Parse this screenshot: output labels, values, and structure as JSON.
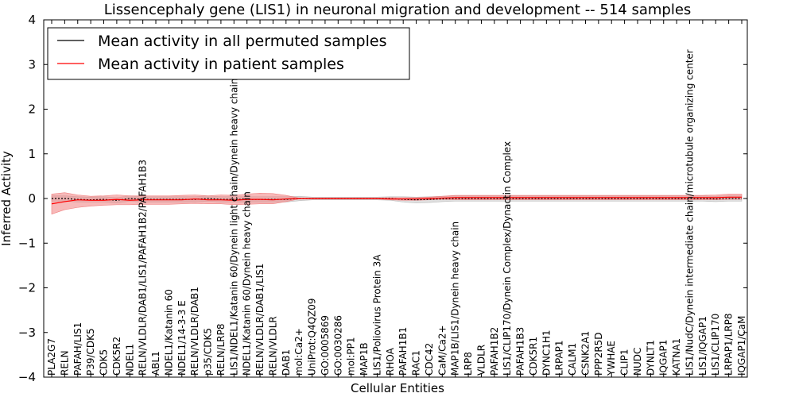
{
  "chart_data": {
    "type": "line",
    "title": "Lissencephaly gene (LIS1) in neuronal migration and development -- 514 samples",
    "xlabel": "Cellular Entities",
    "ylabel": "Inferred Activity",
    "ylim": [
      -4,
      4
    ],
    "yticks": [
      -4,
      -3,
      -2,
      -1,
      0,
      1,
      2,
      3,
      4
    ],
    "ytick_labels": [
      "−4",
      "−3",
      "−2",
      "−1",
      "0",
      "1",
      "2",
      "3",
      "4"
    ],
    "grid": false,
    "legend_position": "top-left",
    "categories": [
      "PLA2G7",
      "RELN",
      "PAFAH/LIS1",
      "P39/CDK5",
      "CDK5",
      "CDK5R2",
      "NDEL1",
      "RELN/VLDLR/DAB1/LIS1/PAFAH1B2/PAFAH1B3",
      "ABL1",
      "NDEL1/Katanin 60",
      "NDEL1/14-3-3 E",
      "RELN/VLDLR/DAB1",
      "p35/CDK5",
      "RELN/LRP8",
      "LIS1/NDEL1/Katanin 60/Dynein light chain/Dynein heavy chain",
      "NDEL1/Katanin 60/Dynein heavy chain",
      "RELN/VLDLR/DAB1/LIS1",
      "RELN/VLDLR",
      "DAB1",
      "mol:Ca2+",
      "UniProt:Q4QZ09",
      "GO:0005869",
      "GO:0030286",
      "mol:PP1",
      "MAP1B",
      "LIS1/Poliovirus Protein 3A",
      "RHOA",
      "PAFAH1B1",
      "RAC1",
      "CDC42",
      "CaM/Ca2+",
      "MAP1B/LIS1/Dynein heavy chain",
      "LRP8",
      "VLDLR",
      "PAFAH1B2",
      "LIS1/CLIP170/Dynein Complex/Dynactin Complex",
      "PAFAH1B3",
      "CDK5R1",
      "DYNC1H1",
      "LRPAP1",
      "CALM1",
      "CSNK2A1",
      "PPP2R5D",
      "YWHAE",
      "CLIP1",
      "NUDC",
      "DYNLT1",
      "IQGAP1",
      "KATNA1",
      "LIS1/NudC/Dynein intermediate chain/microtubule organizing center",
      "LIS1/IQGAP1",
      "LIS1/CLIP170",
      "LRPAP1/LRP8",
      "IQGAP1/CaM"
    ],
    "series": [
      {
        "name": "Mean activity in all permuted samples",
        "color": "#000000",
        "band_color": "#bbbbbb",
        "values": [
          0.0,
          0.0,
          -0.02,
          -0.03,
          -0.02,
          -0.04,
          0.0,
          -0.02,
          -0.02,
          -0.02,
          -0.02,
          -0.02,
          0.0,
          -0.02,
          -0.02,
          -0.02,
          -0.02,
          -0.02,
          -0.02,
          0.0,
          0.0,
          0.0,
          0.0,
          0.0,
          0.0,
          0.0,
          0.0,
          -0.02,
          -0.03,
          -0.02,
          -0.01,
          0.0,
          0.0,
          0.0,
          0.0,
          0.0,
          0.0,
          0.0,
          0.0,
          0.0,
          0.0,
          0.0,
          0.0,
          0.0,
          0.0,
          0.0,
          0.0,
          0.0,
          0.0,
          0.0,
          0.0,
          -0.01,
          0.0,
          0.0
        ],
        "lower": [
          -0.06,
          -0.06,
          -0.08,
          -0.08,
          -0.08,
          -0.1,
          -0.06,
          -0.08,
          -0.08,
          -0.08,
          -0.08,
          -0.08,
          -0.06,
          -0.08,
          -0.08,
          -0.08,
          -0.08,
          -0.08,
          -0.08,
          -0.05,
          -0.03,
          -0.03,
          -0.03,
          -0.03,
          -0.03,
          -0.03,
          -0.04,
          -0.08,
          -0.1,
          -0.09,
          -0.07,
          -0.06,
          -0.06,
          -0.06,
          -0.06,
          -0.06,
          -0.06,
          -0.06,
          -0.06,
          -0.06,
          -0.06,
          -0.06,
          -0.06,
          -0.06,
          -0.06,
          -0.06,
          -0.06,
          -0.06,
          -0.06,
          -0.06,
          -0.06,
          -0.07,
          -0.06,
          -0.06
        ],
        "upper": [
          0.06,
          0.06,
          0.04,
          0.03,
          0.04,
          0.02,
          0.06,
          0.04,
          0.04,
          0.04,
          0.04,
          0.04,
          0.06,
          0.04,
          0.04,
          0.04,
          0.04,
          0.04,
          0.04,
          0.05,
          0.03,
          0.03,
          0.03,
          0.03,
          0.03,
          0.03,
          0.04,
          0.04,
          0.03,
          0.04,
          0.05,
          0.06,
          0.06,
          0.06,
          0.06,
          0.06,
          0.06,
          0.06,
          0.06,
          0.06,
          0.06,
          0.06,
          0.06,
          0.06,
          0.06,
          0.06,
          0.06,
          0.06,
          0.06,
          0.06,
          0.06,
          0.05,
          0.06,
          0.06
        ]
      },
      {
        "name": "Mean activity in patient samples",
        "color": "#ff0000",
        "band_color": "#f08080",
        "values": [
          -0.12,
          -0.07,
          -0.03,
          -0.04,
          -0.04,
          -0.02,
          -0.04,
          -0.03,
          -0.03,
          -0.03,
          -0.03,
          -0.01,
          -0.03,
          -0.03,
          -0.04,
          -0.02,
          -0.02,
          -0.03,
          -0.01,
          0.0,
          0.0,
          0.0,
          0.0,
          0.0,
          0.0,
          0.0,
          -0.01,
          -0.01,
          -0.01,
          0.0,
          0.01,
          0.02,
          0.02,
          0.02,
          0.02,
          0.02,
          0.02,
          0.02,
          0.02,
          0.02,
          0.02,
          0.02,
          0.02,
          0.02,
          0.02,
          0.02,
          0.02,
          0.02,
          0.02,
          0.02,
          0.02,
          0.02,
          0.03,
          0.03
        ],
        "lower": [
          -0.35,
          -0.25,
          -0.2,
          -0.17,
          -0.15,
          -0.14,
          -0.14,
          -0.13,
          -0.13,
          -0.13,
          -0.12,
          -0.11,
          -0.12,
          -0.12,
          -0.14,
          -0.13,
          -0.12,
          -0.12,
          -0.07,
          -0.01,
          -0.01,
          -0.01,
          -0.01,
          -0.01,
          -0.01,
          -0.01,
          -0.03,
          -0.04,
          -0.04,
          -0.03,
          -0.02,
          -0.03,
          -0.03,
          -0.03,
          -0.03,
          -0.03,
          -0.03,
          -0.03,
          -0.03,
          -0.03,
          -0.03,
          -0.03,
          -0.03,
          -0.03,
          -0.03,
          -0.03,
          -0.03,
          -0.03,
          -0.03,
          -0.03,
          -0.03,
          -0.03,
          -0.02,
          -0.02
        ],
        "upper": [
          0.1,
          0.13,
          0.08,
          0.05,
          0.06,
          0.08,
          0.06,
          0.06,
          0.06,
          0.06,
          0.07,
          0.08,
          0.06,
          0.08,
          0.07,
          0.1,
          0.12,
          0.11,
          0.07,
          0.01,
          0.01,
          0.01,
          0.01,
          0.01,
          0.01,
          0.01,
          0.02,
          0.02,
          0.02,
          0.03,
          0.05,
          0.07,
          0.07,
          0.07,
          0.07,
          0.07,
          0.07,
          0.07,
          0.07,
          0.07,
          0.07,
          0.07,
          0.07,
          0.07,
          0.07,
          0.07,
          0.07,
          0.07,
          0.07,
          0.07,
          0.07,
          0.08,
          0.1,
          0.1
        ]
      }
    ]
  }
}
